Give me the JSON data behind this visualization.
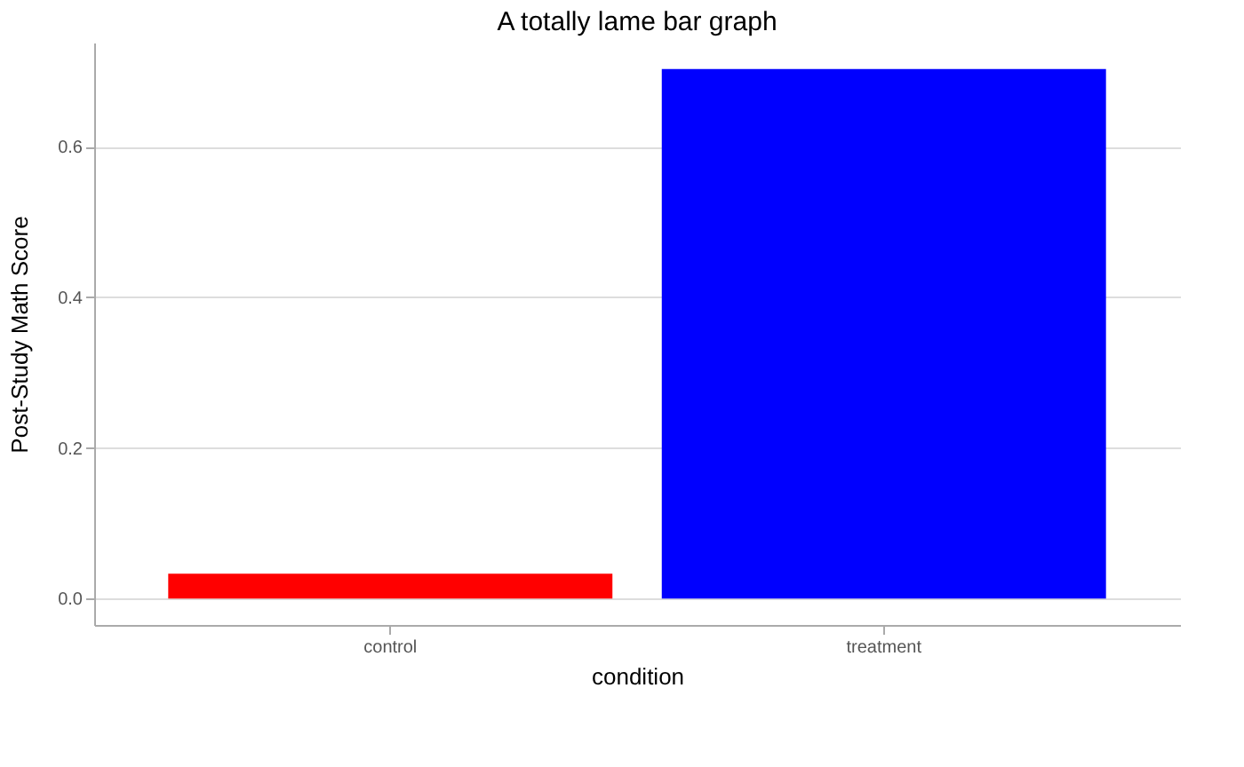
{
  "chart_data": {
    "type": "bar",
    "title": "A totally lame bar graph",
    "xlabel": "condition",
    "ylabel": "Post-Study Math Score",
    "categories": [
      "control",
      "treatment"
    ],
    "values": [
      0.033,
      0.703
    ],
    "colors": [
      "#ff0000",
      "#0000ff"
    ],
    "ylim": [
      -0.035,
      0.738
    ],
    "yticks": [
      {
        "value": 0,
        "label": "0.0"
      },
      0.2,
      0.4,
      0.6
    ],
    "grid": "y"
  }
}
